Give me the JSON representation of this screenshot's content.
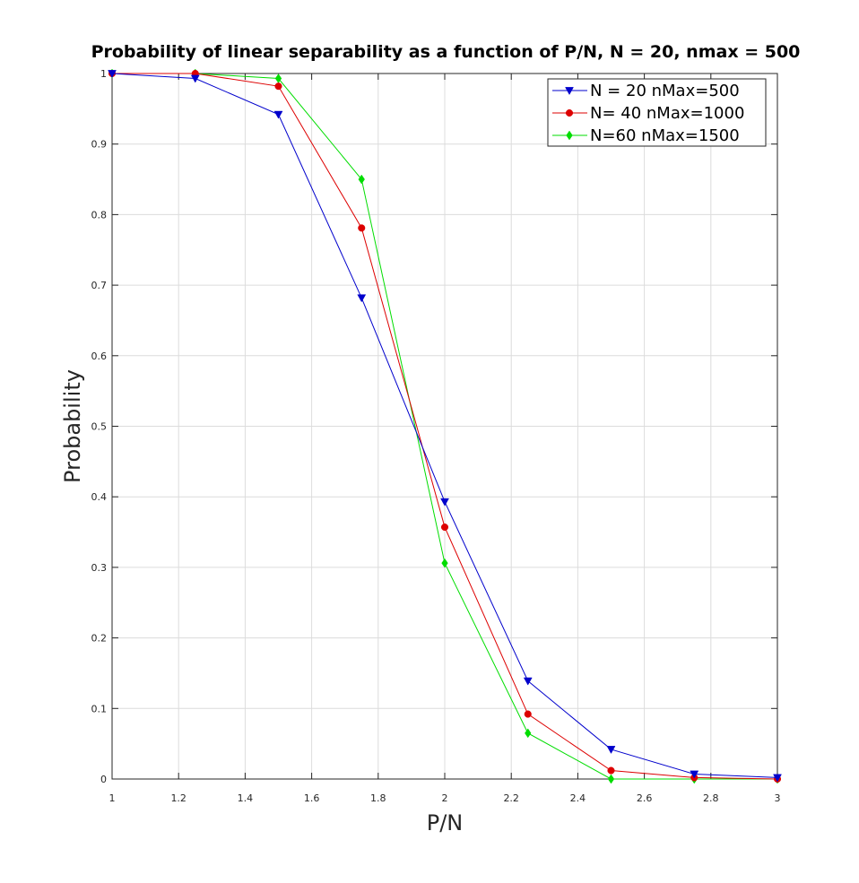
{
  "chart_data": {
    "type": "line",
    "title": "Probability of linear separability as a function of P/N, N = 20, nmax = 500",
    "xlabel": "P/N",
    "ylabel": "Probability",
    "xlim": [
      1,
      3
    ],
    "ylim": [
      0,
      1
    ],
    "x_ticks": [
      "1",
      "1.2",
      "1.4",
      "1.6",
      "1.8",
      "2",
      "2.2",
      "2.4",
      "2.6",
      "2.8",
      "3"
    ],
    "y_ticks": [
      "0",
      "0.1",
      "0.2",
      "0.3",
      "0.4",
      "0.5",
      "0.6",
      "0.7",
      "0.8",
      "0.9",
      "1"
    ],
    "grid": true,
    "legend_position": "top-right",
    "x": [
      1,
      1.25,
      1.5,
      1.75,
      2,
      2.25,
      2.5,
      2.75,
      3
    ],
    "series": [
      {
        "name": "N = 20 nMax=500",
        "color": "#0000cc",
        "marker": "triangle-down",
        "values": [
          1.0,
          0.993,
          0.942,
          0.682,
          0.393,
          0.139,
          0.042,
          0.007,
          0.002
        ]
      },
      {
        "name": "N= 40 nMax=1000",
        "color": "#dd0000",
        "marker": "circle",
        "values": [
          1.0,
          1.0,
          0.982,
          0.781,
          0.357,
          0.092,
          0.012,
          0.002,
          0.0
        ]
      },
      {
        "name": "N=60 nMax=1500",
        "color": "#00dd00",
        "marker": "diamond",
        "values": [
          1.0,
          1.0,
          0.993,
          0.85,
          0.306,
          0.065,
          0.0,
          0.0,
          0.0
        ]
      }
    ]
  }
}
